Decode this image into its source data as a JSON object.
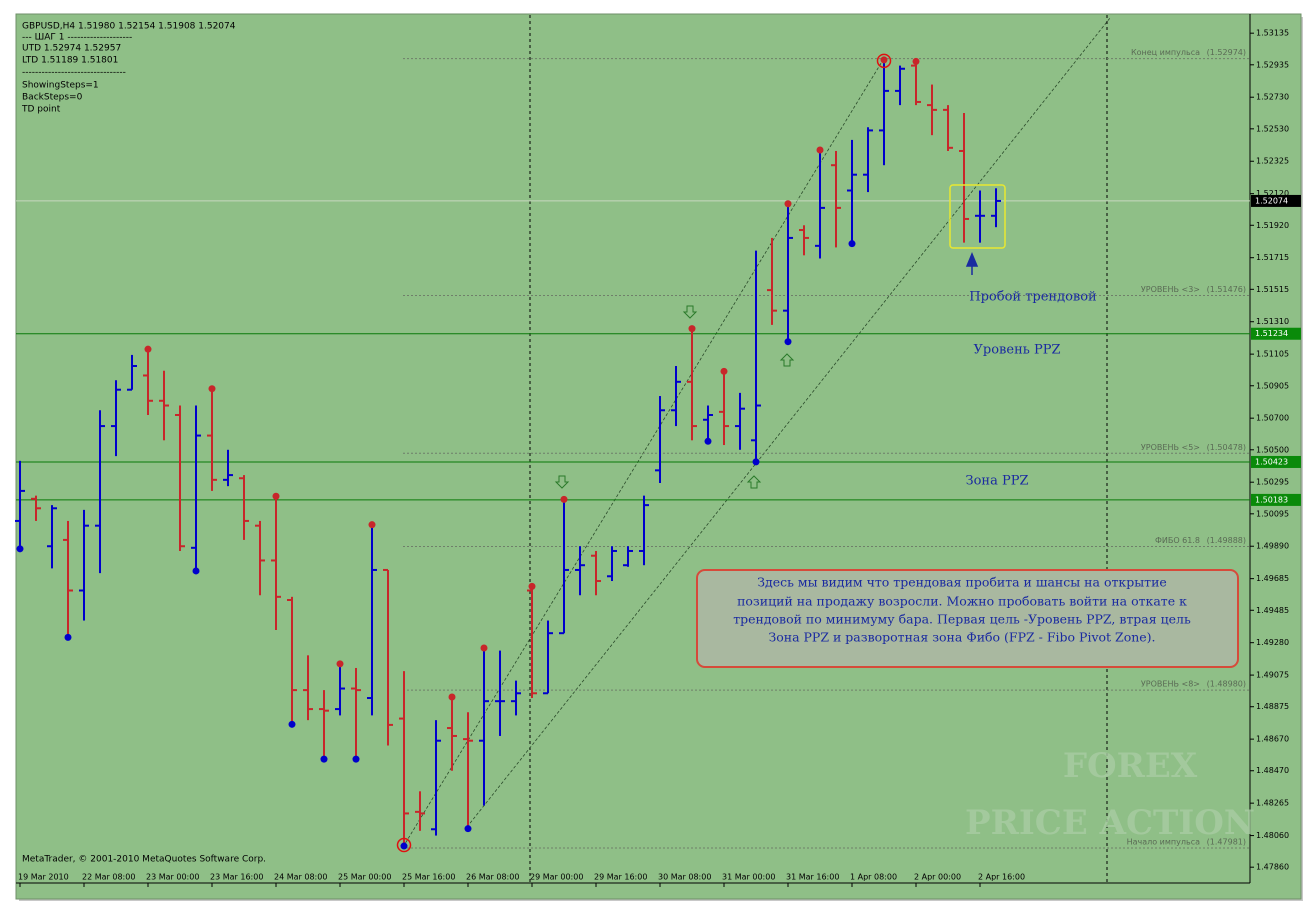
{
  "chart_data": {
    "type": "ohlc",
    "header": [
      "GBPUSD,H4  1.51980 1.52154 1.51908 1.52074",
      "---    ШАГ 1    --------------------",
      "UTD  1.52974   1.52957",
      "LTD   1.51189   1.51801",
      "--------------------------------",
      "ShowingSteps=1",
      "BackSteps=0",
      "TD point"
    ],
    "copyright": "MetaTrader, © 2001-2010 MetaQuotes Software Corp.",
    "categories": [
      "19 Mar 2010",
      null,
      null,
      null,
      "22 Mar 08:00",
      null,
      null,
      null,
      "23 Mar 00:00",
      null,
      null,
      null,
      "23 Mar 16:00",
      null,
      null,
      null,
      "24 Mar 08:00",
      null,
      null,
      null,
      "25 Mar 00:00",
      null,
      null,
      null,
      "25 Mar 16:00",
      null,
      null,
      null,
      "26 Mar 08:00",
      null,
      null,
      null,
      "29 Mar 00:00",
      null,
      null,
      null,
      "29 Mar 16:00",
      null,
      null,
      null,
      "30 Mar 08:00",
      null,
      null,
      null,
      "31 Mar 00:00",
      null,
      null,
      null,
      "31 Mar 16:00",
      null,
      null,
      null,
      "1 Apr 08:00",
      null,
      null,
      null,
      "2 Apr 00:00",
      null,
      null,
      null,
      "2 Apr 16:00",
      null
    ],
    "open": [
      1.5005,
      1.5019,
      1.4989,
      1.4993,
      1.4961,
      1.5002,
      1.5065,
      1.5088,
      1.5097,
      1.5081,
      1.5072,
      1.4988,
      1.5059,
      1.5031,
      1.5032,
      1.5002,
      1.498,
      1.4955,
      1.4898,
      1.4886,
      1.4886,
      1.4899,
      1.4893,
      1.4974,
      1.488,
      1.4821,
      1.481,
      1.4874,
      1.4867,
      1.4866,
      1.4891,
      1.4891,
      1.4961,
      1.4896,
      1.4934,
      1.4974,
      1.4983,
      1.497,
      1.4977,
      1.4986,
      1.5037,
      1.5075,
      1.5093,
      1.5069,
      1.5074,
      1.5065,
      1.5056,
      1.5151,
      1.5138,
      1.5189,
      1.5179,
      1.523,
      1.5214,
      1.5224,
      1.5252,
      1.5277,
      1.5293,
      1.5268,
      1.5265,
      1.5239,
      1.5198,
      1.5198
    ],
    "high": [
      1.5043,
      1.5021,
      1.5015,
      1.5005,
      1.5012,
      1.5075,
      1.5094,
      1.511,
      1.5113,
      1.51,
      1.5078,
      1.5078,
      1.5088,
      1.505,
      1.5034,
      1.5005,
      1.502,
      1.4957,
      1.492,
      1.4898,
      1.4914,
      1.4912,
      1.5002,
      1.4974,
      1.491,
      1.4834,
      1.4879,
      1.4893,
      1.4884,
      1.4924,
      1.4923,
      1.4904,
      1.4963,
      1.4942,
      1.5018,
      1.4989,
      1.4986,
      1.4989,
      1.4989,
      1.5021,
      1.5084,
      1.5103,
      1.5126,
      1.5078,
      1.5099,
      1.5086,
      1.5176,
      1.5184,
      1.5205,
      1.5192,
      1.5239,
      1.5239,
      1.5246,
      1.5254,
      1.5296,
      1.5293,
      1.5295,
      1.5281,
      1.5268,
      1.5263,
      1.5214,
      1.52154
    ],
    "low": [
      1.4988,
      1.5005,
      1.4975,
      1.4932,
      1.4942,
      1.4972,
      1.5046,
      1.5088,
      1.5072,
      1.5056,
      1.4986,
      1.4974,
      1.5024,
      1.5027,
      1.4993,
      1.4958,
      1.4936,
      1.4877,
      1.4879,
      1.4855,
      1.4882,
      1.4855,
      1.4882,
      1.4863,
      1.48,
      1.4809,
      1.4806,
      1.4847,
      1.4811,
      1.4825,
      1.4869,
      1.4882,
      1.4893,
      1.4896,
      1.4934,
      1.4958,
      1.4958,
      1.4967,
      1.4976,
      1.4977,
      1.5029,
      1.5065,
      1.5056,
      1.5056,
      1.5053,
      1.505,
      1.5043,
      1.5129,
      1.5119,
      1.5173,
      1.5171,
      1.5178,
      1.5181,
      1.5213,
      1.523,
      1.5268,
      1.5268,
      1.5249,
      1.5239,
      1.5181,
      1.5181,
      1.51908
    ],
    "close": [
      1.5024,
      1.5013,
      1.5013,
      1.4961,
      1.5002,
      1.5065,
      1.5088,
      1.5103,
      1.5081,
      1.5078,
      1.4989,
      1.5059,
      1.5031,
      1.5034,
      1.5005,
      1.498,
      1.4957,
      1.4898,
      1.4886,
      1.4885,
      1.4899,
      1.4898,
      1.4974,
      1.4876,
      1.482,
      1.482,
      1.4866,
      1.4869,
      1.4866,
      1.4891,
      1.4891,
      1.4896,
      1.4896,
      1.4934,
      1.4974,
      1.4977,
      1.4967,
      1.4986,
      1.4986,
      1.5015,
      1.5075,
      1.5093,
      1.5065,
      1.5072,
      1.5065,
      1.5076,
      1.5078,
      1.5138,
      1.5184,
      1.5184,
      1.5203,
      1.5203,
      1.5224,
      1.5252,
      1.5277,
      1.5291,
      1.527,
      1.5265,
      1.5241,
      1.5196,
      1.5198,
      1.52074
    ],
    "up_color": "#0000cc",
    "down_color": "#c8262a",
    "td_high_bars": [
      8,
      12,
      16,
      20,
      22,
      27,
      29,
      32,
      34,
      42,
      44,
      48,
      50,
      54,
      56
    ],
    "td_low_bars": [
      0,
      3,
      11,
      17,
      19,
      21,
      24,
      28,
      43,
      46,
      48,
      52
    ],
    "td_circled_high_bars": [
      54
    ],
    "td_circled_low_bars": [
      24
    ],
    "ylim": [
      1.4776,
      1.5325
    ],
    "yticks": [
      1.53135,
      1.52935,
      {
        "value": 1.5273,
        "label": "1.52730"
      },
      {
        "value": 1.5253,
        "label": "1.52530"
      },
      1.52325,
      {
        "value": 1.5212,
        "label": "1.52120"
      },
      {
        "value": 1.5192,
        "label": "1.51920"
      },
      1.51715,
      1.51515,
      {
        "value": 1.5131,
        "label": "1.51310"
      },
      1.51105,
      1.50905,
      {
        "value": 1.507,
        "label": "1.50700"
      },
      {
        "value": 1.505,
        "label": "1.50500"
      },
      1.50295,
      1.50095,
      {
        "value": 1.4989,
        "label": "1.49890"
      },
      1.49685,
      1.49485,
      {
        "value": 1.4928,
        "label": "1.49280"
      },
      1.49075,
      1.48875,
      {
        "value": 1.4867,
        "label": "1.48670"
      },
      {
        "value": 1.4847,
        "label": "1.48470"
      },
      1.48265,
      {
        "value": 1.4806,
        "label": "1.48060"
      },
      {
        "value": 1.4786,
        "label": "1.47860"
      }
    ],
    "current_price": {
      "value": 1.52074,
      "label": "1.52074"
    },
    "ppz_lines": [
      {
        "value": 1.51234,
        "label": "1.51234"
      },
      {
        "value": 1.50423,
        "label": "1.50423"
      },
      {
        "value": 1.50183,
        "label": "1.50183"
      }
    ],
    "fibo_levels": [
      {
        "name": "Конец импульса",
        "value": 1.52974,
        "label": "(1.52974)"
      },
      {
        "name": "УРОВЕНЬ <3>",
        "value": 1.51476,
        "label": "(1.51476)"
      },
      {
        "name": "УРОВЕНЬ <5>",
        "value": 1.50478,
        "label": "(1.50478)"
      },
      {
        "name": "ФИБО 61.8",
        "value": 1.49888,
        "label": "(1.49888)"
      },
      {
        "name": "УРОВЕНЬ <8>",
        "value": 1.4898,
        "label": "(1.48980)"
      },
      {
        "name": "Начало импульса",
        "value": 1.47981,
        "label": "(1.47981)"
      }
    ],
    "annotations": {
      "breakout": "Пробой трендовой",
      "ppz_level": "Уровень PPZ",
      "ppz_zone": "Зона PPZ",
      "comment": [
        "Здесь мы видим что трендовая пробита и шансы на открытие",
        "позиций на продажу возросли. Можно пробовать войти на откате к",
        "трендовой по минимуму бара. Первая цель -Уровень PPZ, втрая цель",
        "Зона PPZ и разворотная зона Фибо (FPZ - Fibo Pivot Zone)."
      ]
    },
    "watermark": [
      "FOREX",
      "PRICE ACTION"
    ]
  }
}
